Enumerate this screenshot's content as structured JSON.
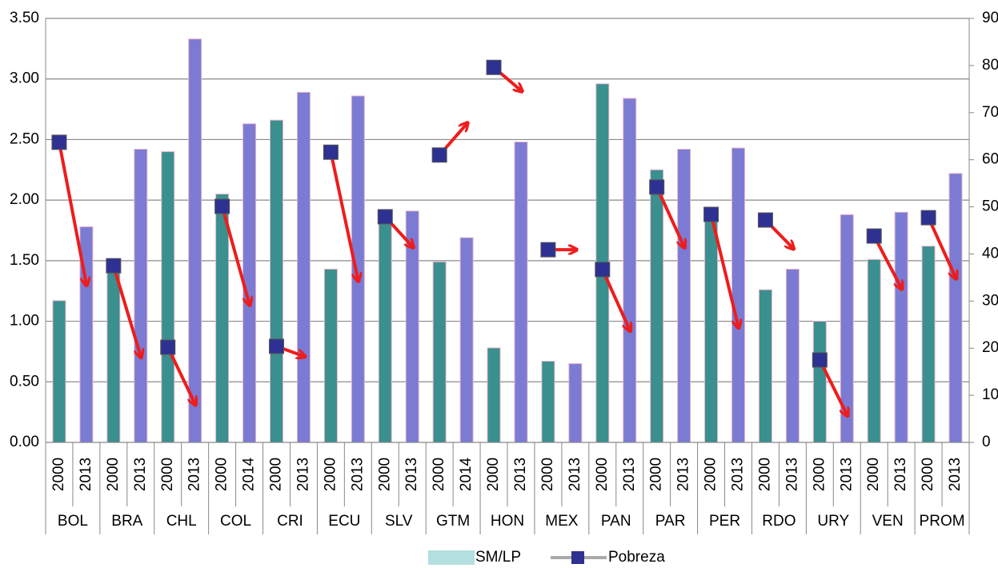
{
  "chart_data": {
    "type": "bar",
    "categories": [
      "2000",
      "2013",
      "2000",
      "2013",
      "2000",
      "2013",
      "2000",
      "2014",
      "2000",
      "2013",
      "2000",
      "2013",
      "2000",
      "2013",
      "2000",
      "2014",
      "2000",
      "2013",
      "2000",
      "2013",
      "2000",
      "2013",
      "2000",
      "2013",
      "2000",
      "2013",
      "2000",
      "2013",
      "2000",
      "2013",
      "2000",
      "2013",
      "2000",
      "2013"
    ],
    "groups": [
      "BOL",
      "BRA",
      "CHL",
      "COL",
      "CRI",
      "ECU",
      "SLV",
      "GTM",
      "HON",
      "MEX",
      "PAN",
      "PAR",
      "PER",
      "RDO",
      "URY",
      "VEN",
      "PROM"
    ],
    "series": [
      {
        "name": "SM/LP",
        "color": "#b4dfe0",
        "bar_colors": [
          "#3a8f8f",
          "#7b7bd4"
        ],
        "values": [
          1.17,
          1.78,
          1.4,
          2.42,
          2.4,
          3.33,
          2.05,
          2.63,
          2.66,
          2.89,
          1.43,
          2.86,
          1.85,
          1.91,
          1.49,
          1.69,
          0.78,
          2.48,
          0.67,
          0.65,
          2.96,
          2.84,
          2.25,
          2.42,
          1.85,
          2.43,
          1.26,
          1.43,
          1.0,
          1.88,
          1.51,
          1.9,
          1.62,
          2.22
        ]
      },
      {
        "name": "Pobreza",
        "color": "#2e3192",
        "arrow_color": "#ee1c1c",
        "axis": "y2",
        "values": [
          63.7,
          33.6,
          37.5,
          18.3,
          20.2,
          8.2,
          50.1,
          29.4,
          20.4,
          18.3,
          61.6,
          34.5,
          47.9,
          41.6,
          61.0,
          67.6,
          79.6,
          74.7,
          40.9,
          40.9,
          36.7,
          23.9,
          54.2,
          41.6,
          48.4,
          24.6,
          47.2,
          41.3,
          17.5,
          5.9,
          43.8,
          32.8,
          47.7,
          35.0
        ]
      }
    ],
    "ylim": [
      0,
      3.5
    ],
    "yticks": [
      {
        "value": 0,
        "label": "0.00"
      },
      {
        "value": 0.5,
        "label": "0.50"
      },
      {
        "value": 1,
        "label": "1.00"
      },
      {
        "value": 1.5,
        "label": "1.50"
      },
      {
        "value": 2,
        "label": "2.00"
      },
      {
        "value": 2.5,
        "label": "2.50"
      },
      {
        "value": 3,
        "label": "3.00"
      },
      {
        "value": 3.5,
        "label": "3.50"
      }
    ],
    "y2lim": [
      0,
      90
    ],
    "y2ticks": [
      0,
      10,
      20,
      30,
      40,
      50,
      60,
      70,
      80,
      90
    ],
    "grid": true,
    "legend": "bottom"
  }
}
